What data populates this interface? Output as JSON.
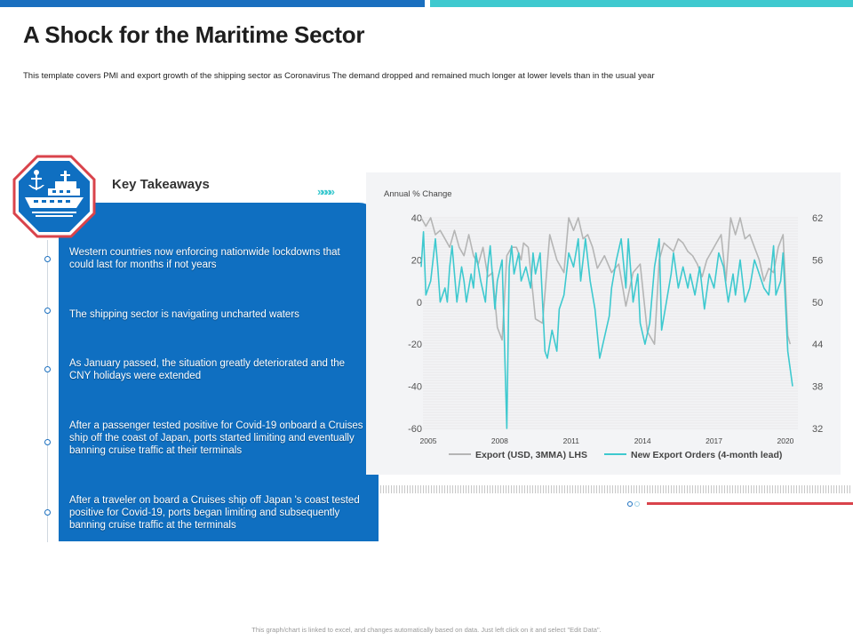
{
  "page": {
    "title": "A Shock for the Maritime Sector",
    "subtitle": "This template covers PMI  and export growth of the shipping sector as Coronavirus The demand  dropped  and remained much  longer at lower levels than in  the usual year",
    "footer": "This graph/chart is linked to excel, and changes automatically based on data. Just left click on it and select \"Edit Data\"."
  },
  "badge": {
    "icon": "anchor-ship-icon"
  },
  "takeaways": {
    "title": "Key Takeaways",
    "chevrons": "»»»»",
    "items": [
      {
        "text": "Western countries now enforcing nationwide lockdowns that could last for months if not years"
      },
      {
        "text": "The shipping sector is navigating uncharted waters"
      },
      {
        "text": "As January passed, the situation greatly deteriorated and the CNY holidays were extended"
      },
      {
        "text": "After  a passenger tested positive for Covid-19 onboard a Cruises ship off the coast of Japan, ports started limiting and eventually banning cruise traffic at their terminals"
      },
      {
        "text": "After  a traveler on board a Cruises ship off Japan 's coast tested positive for Covid-19, ports began limiting and subsequently banning cruise traffic at the terminals"
      }
    ]
  },
  "colors": {
    "primary": "#0f6fc1",
    "accent": "#3ec9cf",
    "grey_series": "#b5b5b5",
    "red": "#d9434b"
  },
  "chart_data": {
    "type": "line",
    "title": "Annual % Change",
    "x_ticks": [
      "2005",
      "2008",
      "2011",
      "2014",
      "2017",
      "2020"
    ],
    "x_range": [
      2005,
      2020.3
    ],
    "y_left": {
      "ticks": [
        "40",
        "20",
        "0",
        "-20",
        "-40",
        "-60"
      ],
      "range": [
        -60,
        40
      ]
    },
    "y_right": {
      "ticks": [
        "62",
        "56",
        "50",
        "44",
        "38",
        "32"
      ],
      "range": [
        32,
        62
      ]
    },
    "legend": {
      "position": "bottom"
    },
    "series": [
      {
        "name": "Export (USD, 3MMA) LHS",
        "axis": "left",
        "color": "#b5b5b5",
        "x": [
          2004.7,
          2004.9,
          2005.1,
          2005.3,
          2005.5,
          2005.7,
          2005.9,
          2006.1,
          2006.3,
          2006.5,
          2006.7,
          2006.9,
          2007.1,
          2007.3,
          2007.5,
          2007.7,
          2007.9,
          2008.1,
          2008.3,
          2008.5,
          2008.7,
          2008.9,
          2009.0,
          2009.2,
          2009.5,
          2009.8,
          2010.1,
          2010.4,
          2010.7,
          2010.9,
          2011.1,
          2011.3,
          2011.5,
          2011.7,
          2011.9,
          2012.1,
          2012.4,
          2012.7,
          2013.0,
          2013.3,
          2013.6,
          2013.9,
          2014.2,
          2014.5,
          2014.7,
          2014.9,
          2015.1,
          2015.3,
          2015.5,
          2015.7,
          2015.9,
          2016.1,
          2016.3,
          2016.5,
          2016.7,
          2016.9,
          2017.1,
          2017.3,
          2017.5,
          2017.7,
          2017.9,
          2018.1,
          2018.3,
          2018.5,
          2018.7,
          2018.9,
          2019.1,
          2019.3,
          2019.5,
          2019.7,
          2019.9,
          2020.0,
          2020.1,
          2020.2
        ],
        "values": [
          40,
          36,
          40,
          32,
          34,
          30,
          26,
          34,
          26,
          22,
          32,
          22,
          18,
          26,
          12,
          14,
          -12,
          -18,
          22,
          26,
          26,
          20,
          28,
          26,
          -8,
          -10,
          32,
          20,
          14,
          40,
          34,
          40,
          30,
          32,
          26,
          16,
          22,
          14,
          18,
          -2,
          14,
          18,
          -14,
          -20,
          20,
          28,
          26,
          24,
          30,
          28,
          24,
          22,
          18,
          12,
          20,
          24,
          28,
          32,
          10,
          40,
          32,
          40,
          30,
          32,
          26,
          20,
          10,
          16,
          14,
          26,
          32,
          8,
          -16,
          -20
        ]
      },
      {
        "name": "New Export Orders (4-month lead)",
        "axis": "right",
        "color": "#3ec9cf",
        "x": [
          2004.7,
          2004.8,
          2004.9,
          2005.1,
          2005.3,
          2005.4,
          2005.5,
          2005.7,
          2005.8,
          2005.9,
          2006.0,
          2006.2,
          2006.4,
          2006.5,
          2006.6,
          2006.8,
          2006.9,
          2007.0,
          2007.2,
          2007.4,
          2007.5,
          2007.6,
          2007.8,
          2007.9,
          2008.1,
          2008.3,
          2008.4,
          2008.5,
          2008.6,
          2008.8,
          2008.9,
          2009.1,
          2009.3,
          2009.4,
          2009.5,
          2009.7,
          2009.9,
          2010.0,
          2010.2,
          2010.4,
          2010.5,
          2010.7,
          2010.9,
          2011.1,
          2011.3,
          2011.4,
          2011.6,
          2011.8,
          2012.0,
          2012.2,
          2012.4,
          2012.6,
          2012.7,
          2012.9,
          2013.1,
          2013.3,
          2013.4,
          2013.6,
          2013.8,
          2013.9,
          2014.1,
          2014.3,
          2014.5,
          2014.7,
          2014.8,
          2015.0,
          2015.2,
          2015.3,
          2015.5,
          2015.7,
          2015.9,
          2016.0,
          2016.2,
          2016.4,
          2016.6,
          2016.8,
          2017.0,
          2017.2,
          2017.4,
          2017.6,
          2017.8,
          2017.9,
          2018.1,
          2018.3,
          2018.5,
          2018.7,
          2018.9,
          2019.1,
          2019.3,
          2019.5,
          2019.6,
          2019.8,
          2019.9,
          2020.1,
          2020.3
        ],
        "values": [
          55,
          60,
          51,
          53,
          59,
          55,
          50,
          52,
          50,
          55,
          58,
          50,
          55,
          53,
          50,
          54,
          52,
          57,
          53,
          50,
          55,
          58,
          49,
          53,
          56,
          32,
          55,
          58,
          54,
          57,
          53,
          55,
          52,
          57,
          54,
          57,
          43,
          42,
          46,
          43,
          49,
          51,
          57,
          55,
          59,
          53,
          59,
          53,
          49,
          42,
          45,
          48,
          52,
          56,
          59,
          52,
          59,
          50,
          54,
          47,
          44,
          47,
          55,
          59,
          46,
          50,
          54,
          57,
          52,
          55,
          52,
          54,
          51,
          55,
          49,
          54,
          52,
          57,
          55,
          50,
          54,
          51,
          56,
          50,
          52,
          56,
          54,
          52,
          51,
          58,
          51,
          53,
          57,
          43,
          38
        ]
      }
    ]
  }
}
